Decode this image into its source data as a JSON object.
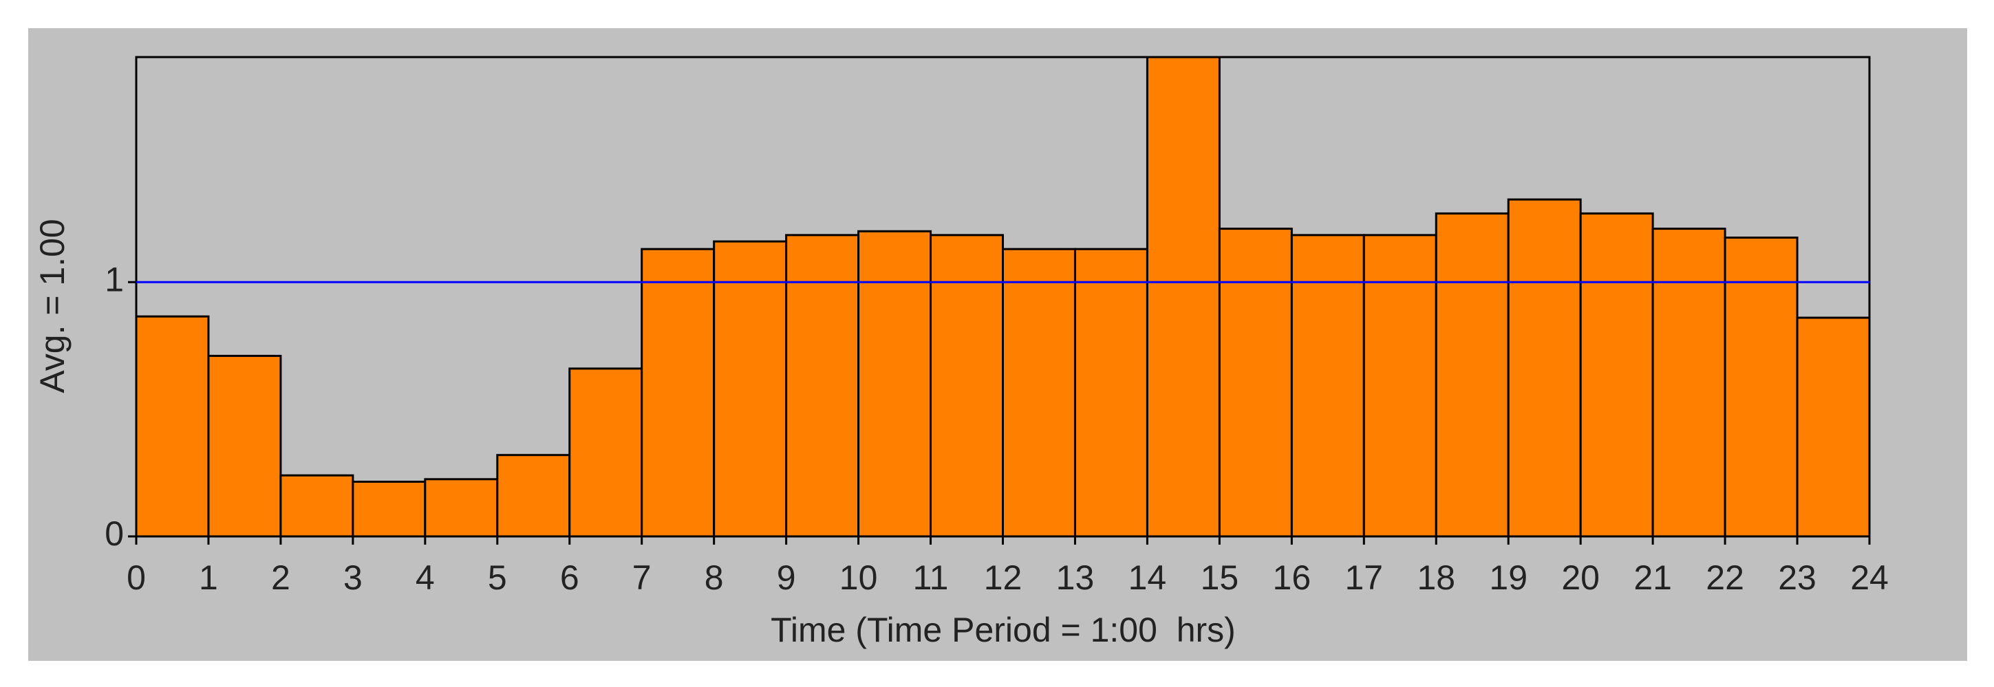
{
  "chart_data": {
    "type": "histogram",
    "x_label": "Time (Time Period = 1:00  hrs)",
    "y_label": "Avg. = 1.00",
    "bins": [
      0,
      1,
      2,
      3,
      4,
      5,
      6,
      7,
      8,
      9,
      10,
      11,
      12,
      13,
      14,
      15,
      16,
      17,
      18,
      19,
      20,
      21,
      22,
      23,
      24
    ],
    "values": [
      0.865,
      0.71,
      0.24,
      0.215,
      0.225,
      0.32,
      0.66,
      1.13,
      1.16,
      1.185,
      1.2,
      1.185,
      1.13,
      1.13,
      1.885,
      1.21,
      1.185,
      1.185,
      1.27,
      1.325,
      1.27,
      1.21,
      1.175,
      0.86
    ],
    "color": "#ff8000",
    "reference_line": 1,
    "reference_color": "#0000ff",
    "xlim": [
      0,
      24
    ],
    "xticks": [
      0,
      1,
      2,
      3,
      4,
      5,
      6,
      7,
      8,
      9,
      10,
      11,
      12,
      13,
      14,
      15,
      16,
      17,
      18,
      19,
      20,
      21,
      22,
      23,
      24
    ],
    "ylim": [
      0,
      1.885
    ],
    "yticks": [
      0,
      1
    ]
  }
}
